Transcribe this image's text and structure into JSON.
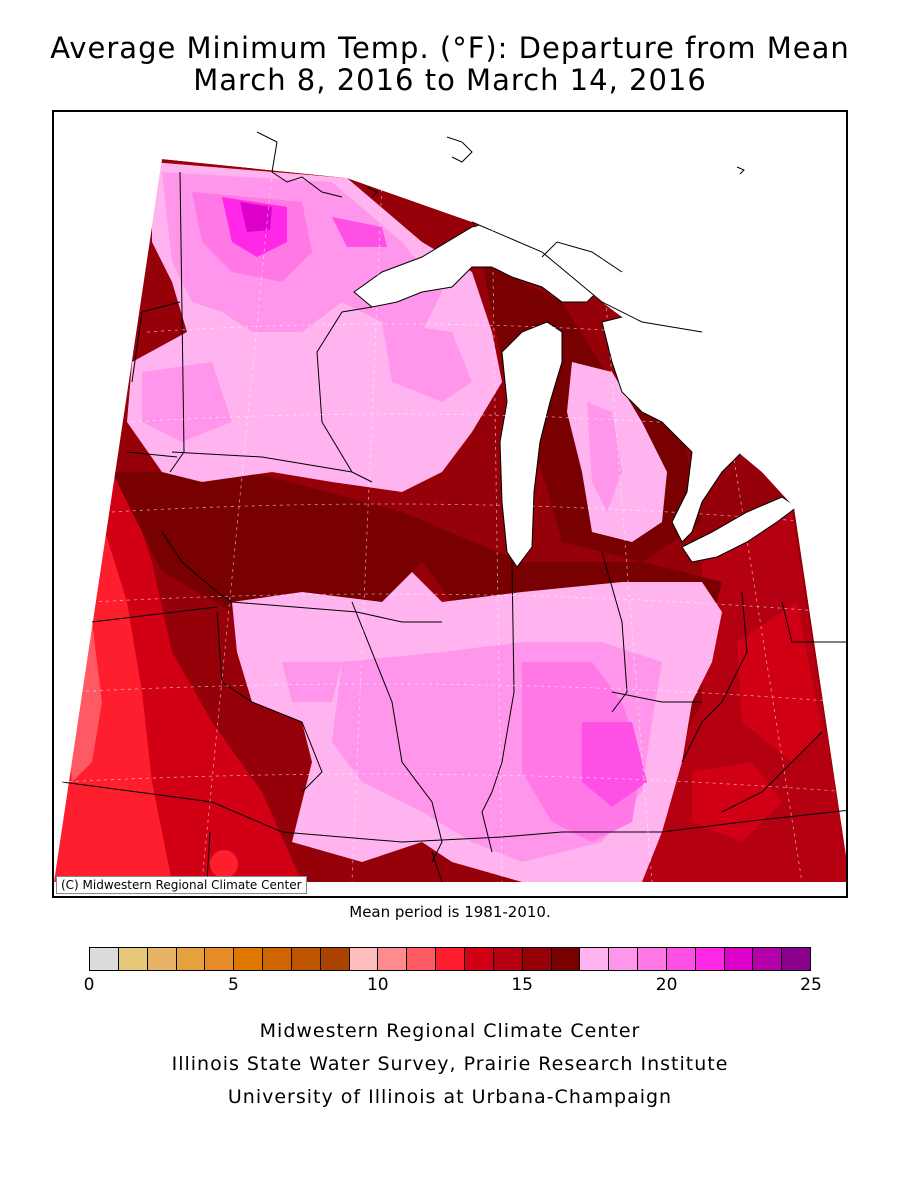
{
  "title": {
    "line1": "Average Minimum Temp. (°F): Departure from Mean",
    "line2": "March 8, 2016 to March 14, 2016"
  },
  "map": {
    "copyright": "(C) Midwestern Regional Climate Center",
    "mean_period": "Mean period is 1981-2010."
  },
  "legend": {
    "tick_labels": [
      "0",
      "5",
      "10",
      "15",
      "20",
      "25"
    ],
    "colors": [
      "#dcdcdc",
      "#e6c878",
      "#e6b464",
      "#e6a03c",
      "#e68c28",
      "#e07800",
      "#d06400",
      "#bd5500",
      "#a84400",
      "#ffbebe",
      "#ff8c8c",
      "#ff5a64",
      "#ff1e2d",
      "#d20014",
      "#b40010",
      "#960008",
      "#780000",
      "#ffb4f0",
      "#ff96eb",
      "#ff78e6",
      "#ff50e6",
      "#ff28e6",
      "#dc00c8",
      "#b400a8",
      "#8c0090"
    ]
  },
  "credits": {
    "line1": "Midwestern Regional Climate Center",
    "line2": "Illinois State Water Survey, Prairie Research Institute",
    "line3": "University of Illinois at Urbana-Champaign"
  }
}
